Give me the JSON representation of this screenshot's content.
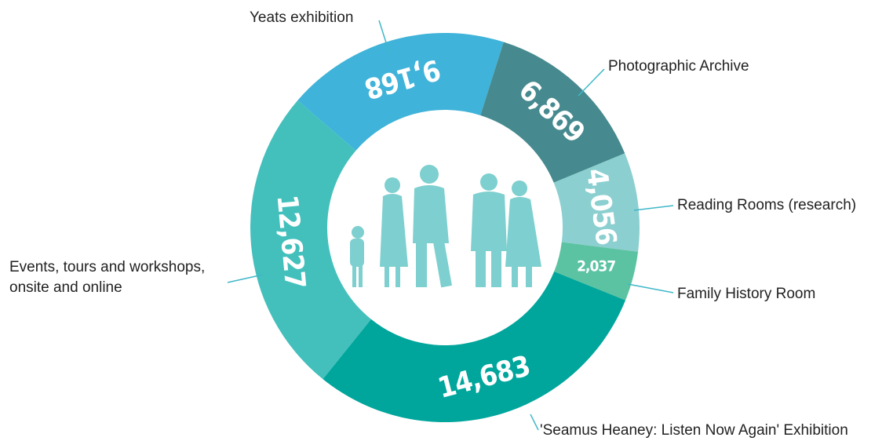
{
  "chart_data": {
    "type": "donut",
    "series": [
      {
        "name": "Yeats exhibition",
        "color": "#3fb3d9",
        "values": [
          9168
        ],
        "value_labels": [
          "9,168"
        ]
      },
      {
        "name": "Photographic Archive",
        "color": "#468a8f",
        "values": [
          6869
        ],
        "value_labels": [
          "6,869"
        ]
      },
      {
        "name": "Reading Rooms (research)",
        "color": "#8ccfd0",
        "values": [
          4056
        ],
        "value_labels": [
          "4,056"
        ]
      },
      {
        "name": "Family History Room",
        "color": "#5cc3a2",
        "values": [
          2037
        ],
        "value_labels": [
          "2,037"
        ]
      },
      {
        "name": "'Seamus Heaney: Listen Now Again' Exhibition",
        "color": "#00a69c",
        "values": [
          14683
        ],
        "value_labels": [
          "14,683"
        ]
      },
      {
        "name": "Events, tours and workshops, onsite and online",
        "color": "#43c0bc",
        "values": [
          12627
        ],
        "value_labels": [
          "12,627"
        ]
      }
    ]
  }
}
